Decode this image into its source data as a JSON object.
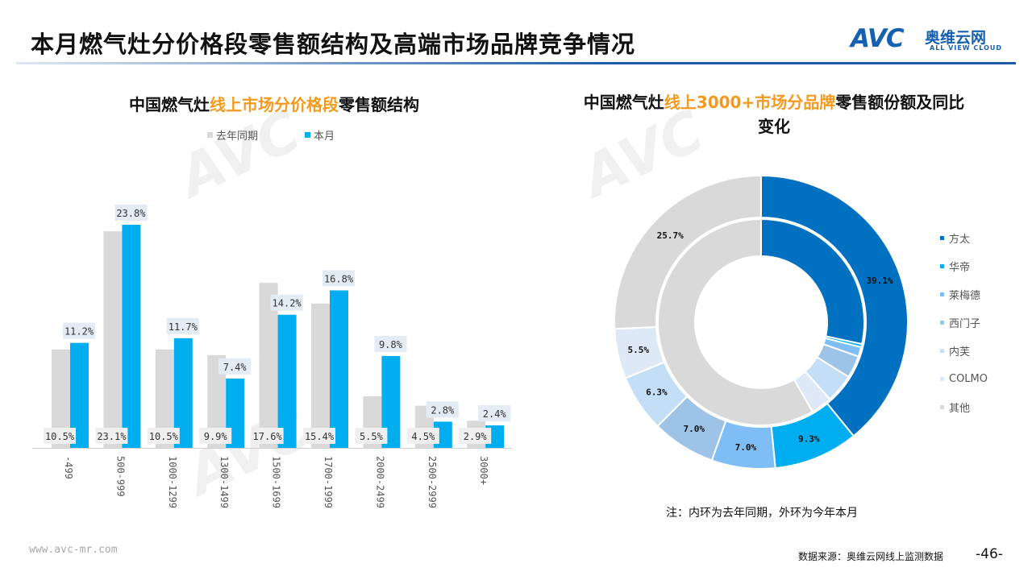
{
  "page_title": "本月燃气灶分价格段零售额结构及高端市场品牌竞争情况",
  "logo": {
    "mark": "AVC",
    "cn": "奥维云网",
    "en": "ALL VIEW CLOUD"
  },
  "colors": {
    "last_year": "#d9d9d9",
    "this_month": "#00aeef",
    "title_accent": "#f39a1e"
  },
  "chart_data": [
    {
      "type": "bar",
      "title_parts": [
        "中国燃气灶",
        "线上市场分价格段",
        "零售额结构"
      ],
      "categories": [
        "-499",
        "500-999",
        "1000-1299",
        "1300-1499",
        "1500-1699",
        "1700-1999",
        "2000-2499",
        "2500-2999",
        "3000+"
      ],
      "series": [
        {
          "name": "去年同期",
          "values": [
            10.5,
            23.1,
            10.5,
            9.9,
            17.6,
            15.4,
            5.5,
            4.5,
            2.9
          ],
          "labels": [
            "10.5%",
            "23.1%",
            "10.5%",
            "9.9%",
            "17.6%",
            "15.4%",
            "5.5%",
            "4.5%",
            "2.9%"
          ]
        },
        {
          "name": "本月",
          "values": [
            11.2,
            23.8,
            11.7,
            7.4,
            14.2,
            16.8,
            9.8,
            2.8,
            2.4
          ],
          "labels": [
            "11.2%",
            "23.8%",
            "11.7%",
            "7.4%",
            "14.2%",
            "16.8%",
            "9.8%",
            "2.8%",
            "2.4%"
          ]
        }
      ],
      "unit": "%",
      "legend": "top"
    },
    {
      "type": "pie",
      "title_parts": [
        "中国燃气灶",
        "线上3000+市场分品牌",
        "零售额份额及同比变化"
      ],
      "categories": [
        "方太",
        "华帝",
        "莱梅德",
        "西门子",
        "内芙",
        "COLMO",
        "其他"
      ],
      "colors": [
        "#0070c0",
        "#00aeef",
        "#7fbef5",
        "#9dc3e6",
        "#c5def7",
        "#dde9f6",
        "#d9d9d9"
      ],
      "series": [
        {
          "name": "外环(今年本月)",
          "values": [
            39.1,
            9.3,
            7.0,
            7.0,
            6.3,
            5.5,
            25.7
          ],
          "labels": [
            "39.1%",
            "9.3%",
            "7.0%",
            "7.0%",
            "6.3%",
            "5.5%",
            "25.7%"
          ]
        },
        {
          "name": "内环(去年同期)",
          "values": [
            28.4,
            0.5,
            1.5,
            3.5,
            4.5,
            3.3,
            58.3
          ]
        }
      ],
      "legend": "right"
    }
  ],
  "note": "注：内环为去年同期，外环为今年本月",
  "footer": {
    "url": "www.avc-mr.com",
    "source": "数据来源：奥维云网线上监测数据",
    "page": "-46-"
  }
}
